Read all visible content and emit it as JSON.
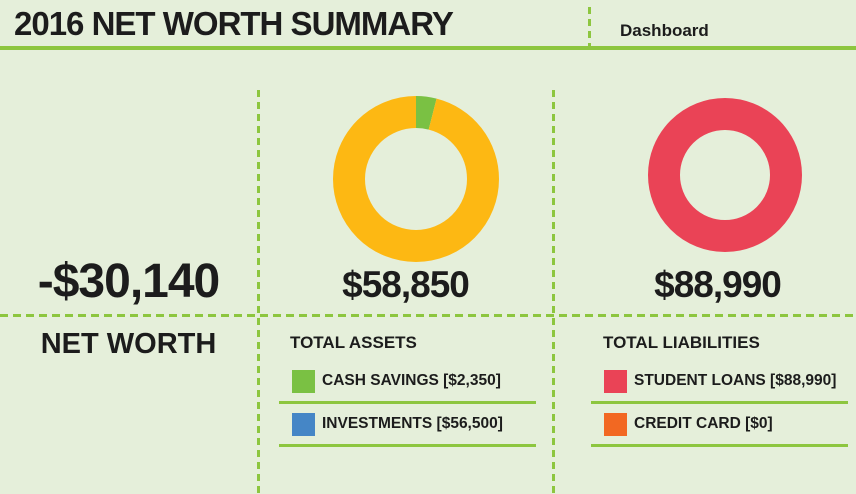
{
  "header": {
    "title": "2016 NET WORTH SUMMARY",
    "dashboard_label": "Dashboard"
  },
  "net_worth": {
    "amount": "-$30,140",
    "label": "NET WORTH"
  },
  "assets": {
    "total": "$58,850",
    "heading": "TOTAL ASSETS",
    "legend": [
      {
        "label": "CASH SAVINGS [$2,350]",
        "swatch_color": "#7AC143"
      },
      {
        "label": "INVESTMENTS [$56,500]",
        "swatch_color": "#4586C6"
      }
    ]
  },
  "liabilities": {
    "total": "$88,990",
    "heading": "TOTAL LIABILITIES",
    "legend": [
      {
        "label": "STUDENT LOANS [$88,990]",
        "swatch_color": "#EA4356"
      },
      {
        "label": "CREDIT CARD [$0]",
        "swatch_color": "#F26822"
      }
    ]
  },
  "colors": {
    "background": "#E5EFDA",
    "accent_green": "#8DC63F",
    "text": "#1C1C1C"
  },
  "chart_data": [
    {
      "type": "pie",
      "variant": "donut",
      "title": "TOTAL ASSETS",
      "total": 58850,
      "total_label": "$58,850",
      "legend_position": "below",
      "segments": [
        {
          "label": "CASH SAVINGS",
          "value": 2350,
          "color": "#7AC143"
        },
        {
          "label": "INVESTMENTS",
          "value": 56500,
          "color": "#FDB813"
        }
      ]
    },
    {
      "type": "pie",
      "variant": "donut",
      "title": "TOTAL LIABILITIES",
      "total": 88990,
      "total_label": "$88,990",
      "legend_position": "below",
      "segments": [
        {
          "label": "STUDENT LOANS",
          "value": 88990,
          "color": "#EA4356"
        },
        {
          "label": "CREDIT CARD",
          "value": 0,
          "color": "#F26822"
        }
      ]
    }
  ]
}
